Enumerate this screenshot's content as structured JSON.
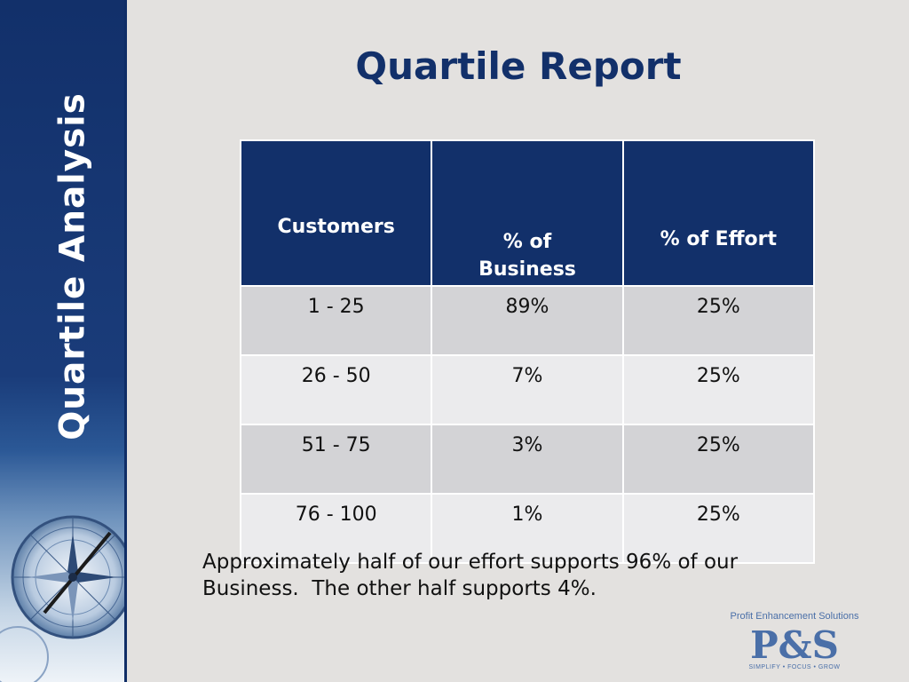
{
  "slide": {
    "sidebar_title": "Quartile Analysis",
    "title": "Quartile Report"
  },
  "table": {
    "headers": [
      "Customers",
      "% of\nBusiness",
      "% of Effort"
    ],
    "header_customers": "Customers",
    "header_business_line1": "% of",
    "header_business_line2": "Business",
    "header_effort": "% of Effort",
    "rows": [
      {
        "customers": "1 - 25",
        "business": "89%",
        "effort": "25%"
      },
      {
        "customers": "26 - 50",
        "business": "7%",
        "effort": "25%"
      },
      {
        "customers": "51 - 75",
        "business": "3%",
        "effort": "25%"
      },
      {
        "customers": "76 - 100",
        "business": "1%",
        "effort": "25%"
      }
    ]
  },
  "summary": {
    "line1": "Approximately half of our effort supports 96% of our",
    "line2": "Business.  The other half supports 4%."
  },
  "logo": {
    "company": "Profit Enhancement Solutions",
    "mark": "P&S",
    "tagline": "SIMPLIFY • FOCUS • GROW"
  },
  "colors": {
    "navy": "#12306a",
    "background": "#e3e1df",
    "row_shade": "#d3d3d6",
    "row_light": "#ebebed",
    "logo_blue": "#4a6fa8"
  }
}
